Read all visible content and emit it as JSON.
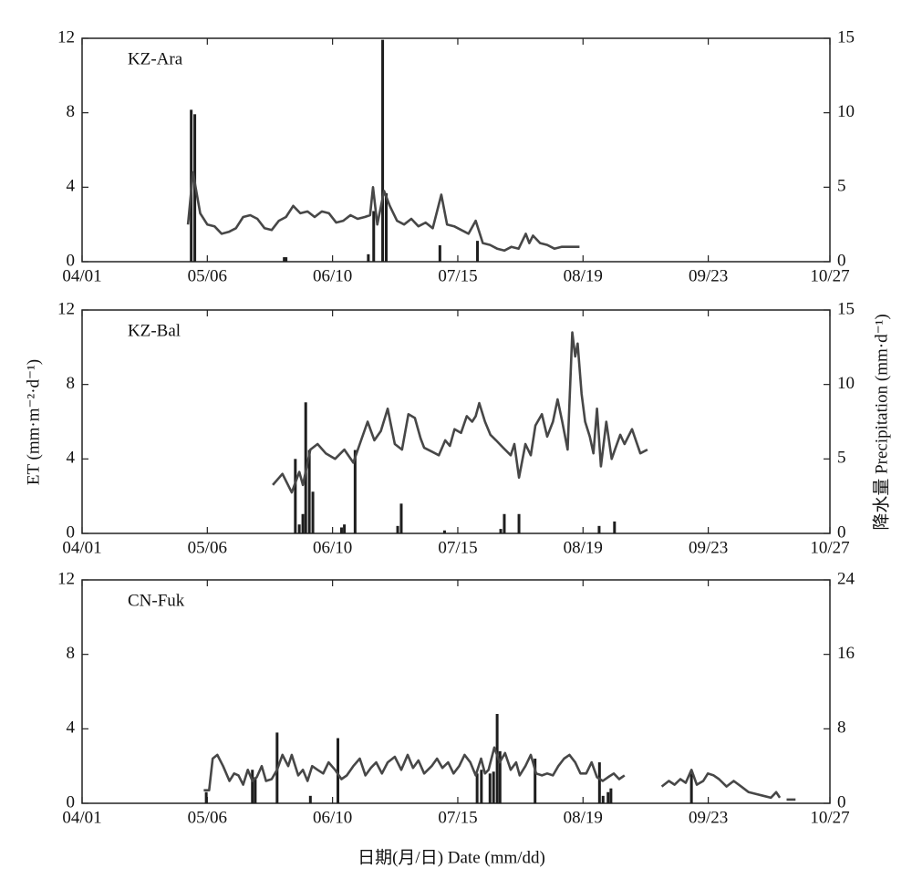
{
  "y_label": "ET (mm·m⁻²·d⁻¹)",
  "y2_label": "降水量 Precipitation (mm·d⁻¹)",
  "x_label": "日期(月/日) Date (mm/dd)",
  "chart_data": [
    {
      "type": "combo",
      "label": "KZ-Ara",
      "xlim": [
        0,
        209
      ],
      "xticks": [
        {
          "value": 0,
          "label": "04/01"
        },
        {
          "value": 35,
          "label": "05/06"
        },
        {
          "value": 70,
          "label": "06/10"
        },
        {
          "value": 105,
          "label": "07/15"
        },
        {
          "value": 140,
          "label": "08/19"
        },
        {
          "value": 175,
          "label": "09/23"
        },
        {
          "value": 209,
          "label": "10/27"
        }
      ],
      "ylim": [
        0,
        12
      ],
      "yticks": [
        0,
        4,
        8,
        12
      ],
      "y2lim": [
        0,
        15
      ],
      "y2ticks": [
        0,
        5,
        10,
        15
      ],
      "series": [
        {
          "type": "line",
          "color": "#474747",
          "x": [
            29.6,
            31,
            33,
            35,
            37,
            39,
            41,
            43,
            45,
            47,
            49,
            51,
            53,
            55,
            57,
            59,
            61,
            63,
            65,
            67,
            69,
            71,
            73,
            75,
            77,
            79,
            80.5,
            81.3,
            82.5,
            84.4,
            86,
            88,
            90,
            92,
            94,
            96,
            98,
            100.4,
            102,
            104,
            106,
            108,
            110,
            112,
            114,
            116,
            118,
            120,
            122,
            124,
            125,
            126,
            128,
            130,
            132,
            134,
            136,
            138,
            139
          ],
          "values": [
            2.0,
            4.8,
            2.6,
            2.0,
            1.9,
            1.5,
            1.6,
            1.8,
            2.4,
            2.5,
            2.3,
            1.8,
            1.7,
            2.2,
            2.4,
            3.0,
            2.6,
            2.7,
            2.4,
            2.7,
            2.6,
            2.1,
            2.2,
            2.5,
            2.3,
            2.4,
            2.5,
            4.0,
            2.0,
            3.8,
            3.0,
            2.2,
            2.0,
            2.3,
            1.9,
            2.1,
            1.8,
            3.6,
            2.0,
            1.9,
            1.7,
            1.5,
            2.2,
            1.0,
            0.9,
            0.7,
            0.6,
            0.8,
            0.7,
            1.5,
            1.0,
            1.4,
            1.0,
            0.9,
            0.7,
            0.8,
            0.8,
            0.8,
            0.8
          ]
        },
        {
          "type": "bar",
          "axis": "y2",
          "color": "#1e1e1e",
          "x": [
            30.5,
            31.5,
            56.5,
            57,
            80,
            81.5,
            84,
            85,
            100,
            110.5
          ],
          "values": [
            10.2,
            9.9,
            0.3,
            0.3,
            0.5,
            3.4,
            14.9,
            4.6,
            1.1,
            1.4
          ]
        }
      ]
    },
    {
      "type": "combo",
      "label": "KZ-Bal",
      "xlim": [
        0,
        209
      ],
      "xticks": [
        {
          "value": 0,
          "label": "04/01"
        },
        {
          "value": 35,
          "label": "05/06"
        },
        {
          "value": 70,
          "label": "06/10"
        },
        {
          "value": 105,
          "label": "07/15"
        },
        {
          "value": 140,
          "label": "08/19"
        },
        {
          "value": 175,
          "label": "09/23"
        },
        {
          "value": 209,
          "label": "10/27"
        }
      ],
      "ylim": [
        0,
        12
      ],
      "yticks": [
        0,
        4,
        8,
        12
      ],
      "y2lim": [
        0,
        15
      ],
      "y2ticks": [
        0,
        5,
        10,
        15
      ],
      "series": [
        {
          "type": "line",
          "color": "#474747",
          "x": [
            53.3,
            56,
            58.6,
            60.7,
            61.7,
            63.8,
            65.8,
            68.1,
            70.7,
            73.3,
            75.8,
            77.6,
            79.8,
            81.7,
            83.5,
            85.4,
            87.4,
            89.4,
            91.2,
            93,
            94.6,
            95.6,
            97.7,
            99.7,
            101.5,
            102.8,
            104.1,
            105.9,
            107.5,
            109,
            110,
            111,
            112.6,
            114.1,
            115.7,
            117.7,
            119.8,
            120.8,
            122.1,
            123.9,
            125.4,
            126.7,
            128.5,
            130,
            131.6,
            132.9,
            134.2,
            135.7,
            137,
            137.8,
            138.5,
            139.6,
            140.6,
            141.9,
            142.9,
            143.9,
            145,
            146.5,
            148,
            149.1,
            150.4,
            151.6,
            153.7,
            156,
            158
          ],
          "values": [
            2.6,
            3.2,
            2.2,
            3.3,
            2.6,
            4.5,
            4.8,
            4.3,
            4.0,
            4.5,
            3.8,
            4.8,
            6.0,
            5.0,
            5.5,
            6.7,
            4.8,
            4.5,
            6.4,
            6.2,
            5.1,
            4.6,
            4.4,
            4.2,
            5.0,
            4.7,
            5.6,
            5.4,
            6.3,
            6.0,
            6.3,
            7.0,
            6.0,
            5.3,
            5.0,
            4.6,
            4.2,
            4.8,
            3.0,
            4.8,
            4.2,
            5.8,
            6.4,
            5.2,
            6.0,
            7.2,
            6.0,
            4.5,
            10.8,
            9.5,
            10.2,
            7.5,
            6.0,
            5.2,
            4.3,
            6.7,
            3.6,
            6.0,
            4.0,
            4.6,
            5.3,
            4.8,
            5.6,
            4.3,
            4.5
          ]
        },
        {
          "type": "bar",
          "axis": "y2",
          "color": "#1e1e1e",
          "x": [
            59.6,
            60.7,
            61.7,
            62.5,
            63.5,
            64.5,
            72.5,
            73.3,
            76.3,
            88.2,
            89.2,
            101.3,
            117,
            118,
            122.1,
            144.5,
            148.8
          ],
          "values": [
            5,
            0.6,
            1.3,
            8.8,
            5.6,
            2.8,
            0.4,
            0.6,
            5.6,
            0.5,
            2,
            0.2,
            0.3,
            1.3,
            1.3,
            0.5,
            0.8
          ]
        }
      ]
    },
    {
      "type": "combo",
      "label": "CN-Fuk",
      "xlim": [
        0,
        209
      ],
      "xticks": [
        {
          "value": 0,
          "label": "04/01"
        },
        {
          "value": 35,
          "label": "05/06"
        },
        {
          "value": 70,
          "label": "06/10"
        },
        {
          "value": 105,
          "label": "07/15"
        },
        {
          "value": 140,
          "label": "08/19"
        },
        {
          "value": 175,
          "label": "09/23"
        },
        {
          "value": 209,
          "label": "10/27"
        }
      ],
      "ylim": [
        0,
        12
      ],
      "yticks": [
        0,
        4,
        8,
        12
      ],
      "y2lim": [
        0,
        24
      ],
      "y2ticks": [
        0,
        8,
        16,
        24
      ],
      "series": [
        {
          "type": "line",
          "color": "#474747",
          "x": [
            34,
            35.5,
            36.5,
            37.8,
            39.4,
            41.2,
            42.5,
            43.7,
            45,
            46.3,
            47.6,
            48.8,
            50.2,
            51.4,
            53,
            54.5,
            56,
            57.6,
            58.6,
            60.4,
            61.7,
            63,
            64.3,
            65.8,
            67.4,
            68.9,
            70.7,
            72.5,
            74,
            75.8,
            77.6,
            79.2,
            80.7,
            82.2,
            83.8,
            85.4,
            87.4,
            89.2,
            91,
            92.5,
            94,
            95.6,
            97.7,
            99.2,
            100.7,
            102.3,
            103.8,
            105.4,
            106.9,
            108.5,
            110,
            111.5,
            112.6,
            113.6,
            115.2,
            116.7,
            118.2,
            119.8,
            121.3,
            122.3,
            123.9,
            125.4,
            126.9,
            128.5,
            130,
            131.6,
            133.1,
            134.7,
            136.2,
            137.8,
            139.3,
            140.9,
            142.4,
            143.9,
            145.5,
            147,
            148.6,
            150.1,
            151.6,
            null,
            162,
            164,
            165.6,
            167.2,
            168.7,
            170.3,
            171.8,
            173.6,
            174.9,
            176.5,
            178,
            180.1,
            182.1,
            184.2,
            186.3,
            188.3,
            190.4,
            192.5,
            194,
            195,
            null,
            196.9,
            199.4
          ],
          "values": [
            0.7,
            0.7,
            2.4,
            2.6,
            2.0,
            1.2,
            1.6,
            1.5,
            1.0,
            1.8,
            1.2,
            1.4,
            2.0,
            1.2,
            1.3,
            1.8,
            2.6,
            2.0,
            2.6,
            1.5,
            1.8,
            1.2,
            2.0,
            1.8,
            1.6,
            2.2,
            1.8,
            1.3,
            1.5,
            2.0,
            2.4,
            1.5,
            1.9,
            2.2,
            1.6,
            2.2,
            2.5,
            1.8,
            2.6,
            1.9,
            2.3,
            1.6,
            2.0,
            2.4,
            1.9,
            2.2,
            1.6,
            2.0,
            2.6,
            2.2,
            1.5,
            2.4,
            1.6,
            1.8,
            3.0,
            2.2,
            2.7,
            1.8,
            2.2,
            1.5,
            2.0,
            2.6,
            1.6,
            1.5,
            1.6,
            1.5,
            2.0,
            2.4,
            2.6,
            2.2,
            1.6,
            1.6,
            2.2,
            1.4,
            1.2,
            1.4,
            1.6,
            1.3,
            1.5,
            null,
            0.9,
            1.2,
            1.0,
            1.3,
            1.1,
            1.8,
            1.0,
            1.2,
            1.6,
            1.5,
            1.3,
            0.9,
            1.2,
            0.9,
            0.6,
            0.5,
            0.4,
            0.3,
            0.6,
            0.3,
            null,
            0.2,
            0.2
          ]
        },
        {
          "type": "bar",
          "axis": "y2",
          "color": "#1e1e1e",
          "x": [
            34.7,
            47.6,
            48.4,
            54.5,
            63.8,
            71.5,
            110.4,
            111.6,
            114,
            115,
            116,
            116.8,
            126.6,
            144.6,
            145.6,
            147,
            147.8,
            170.3
          ],
          "values": [
            1.2,
            3.6,
            2.8,
            7.6,
            0.8,
            7,
            3.2,
            3.6,
            3.2,
            3.4,
            9.6,
            5.6,
            4.8,
            4.4,
            0.8,
            1.2,
            1.6,
            3.2
          ]
        }
      ]
    }
  ]
}
